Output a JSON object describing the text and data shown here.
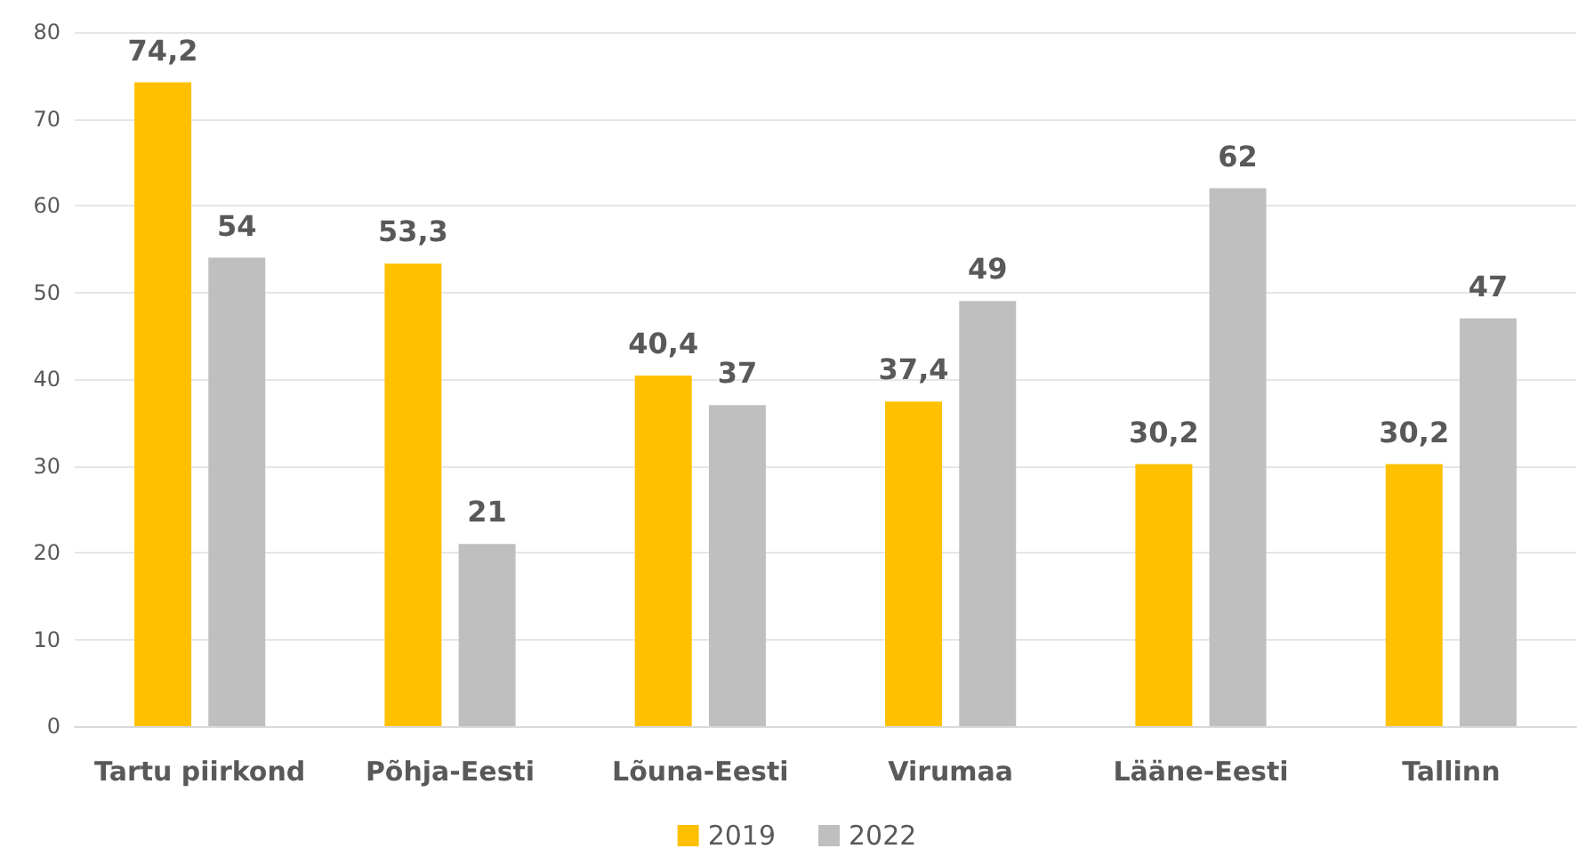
{
  "chart_data": {
    "type": "bar",
    "categories": [
      "Tartu piirkond",
      "Põhja-Eesti",
      "Lõuna-Eesti",
      "Virumaa",
      "Lääne-Eesti",
      "Tallinn"
    ],
    "series": [
      {
        "name": "2019",
        "color": "#ffc000",
        "values": [
          74.2,
          53.3,
          40.4,
          37.4,
          30.2,
          30.2
        ],
        "value_labels": [
          "74,2",
          "53,3",
          "40,4",
          "37,4",
          "30,2",
          "30,2"
        ]
      },
      {
        "name": "2022",
        "color": "#bfbfbf",
        "values": [
          54,
          21,
          37,
          49,
          62,
          47
        ],
        "value_labels": [
          "54",
          "21",
          "37",
          "49",
          "62",
          "47"
        ]
      }
    ],
    "ylim": [
      0,
      80
    ],
    "yticks": [
      0,
      10,
      20,
      30,
      40,
      50,
      60,
      70,
      80
    ],
    "grid": "y",
    "legend": "bottom"
  }
}
